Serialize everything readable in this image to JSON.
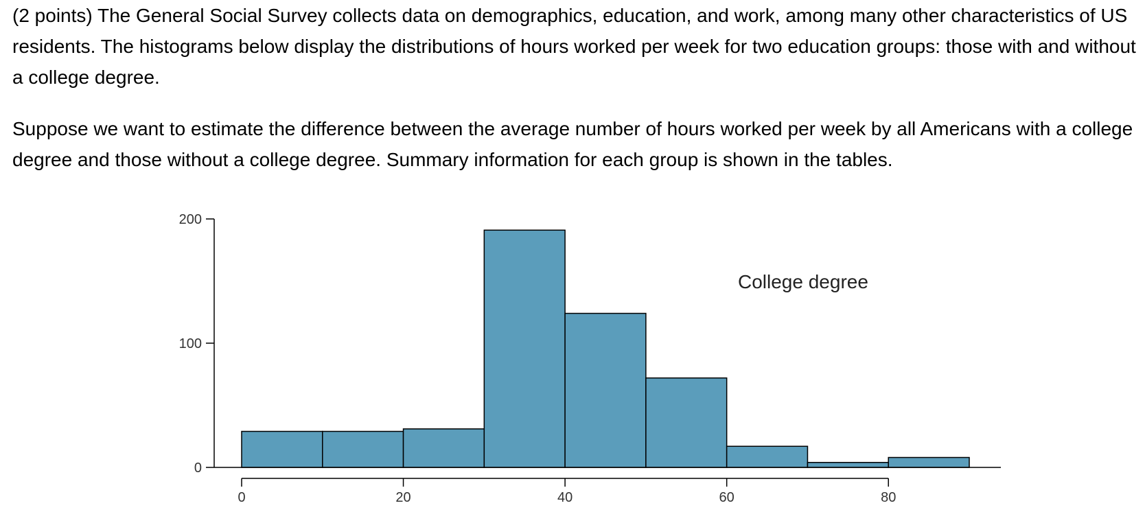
{
  "question": {
    "paragraph1": "(2 points) The General Social Survey collects data on demographics, education, and work, among many other characteristics of US residents. The histograms below display the distributions of hours worked per week for two education groups: those with and without a college degree.",
    "paragraph2": "Suppose we want to estimate the difference between the average number of hours worked per week by all Americans with a college degree and those without a college degree. Summary information for each group is shown in the tables."
  },
  "chart_data": {
    "type": "bar",
    "annotation": "College degree",
    "bins": [
      {
        "x0": 0,
        "x1": 10,
        "value": 29
      },
      {
        "x0": 10,
        "x1": 20,
        "value": 29
      },
      {
        "x0": 20,
        "x1": 30,
        "value": 31
      },
      {
        "x0": 30,
        "x1": 40,
        "value": 191
      },
      {
        "x0": 40,
        "x1": 50,
        "value": 124
      },
      {
        "x0": 50,
        "x1": 60,
        "value": 72
      },
      {
        "x0": 60,
        "x1": 70,
        "value": 17
      },
      {
        "x0": 70,
        "x1": 80,
        "value": 4
      },
      {
        "x0": 80,
        "x1": 90,
        "value": 8
      }
    ],
    "x_ticks": [
      0,
      20,
      40,
      60,
      80
    ],
    "y_ticks": [
      0,
      100,
      200
    ],
    "xlim": [
      0,
      90
    ],
    "ylim": [
      0,
      200
    ],
    "bar_color": "#5b9dbb",
    "edge_color": "#000000",
    "grid": false
  }
}
